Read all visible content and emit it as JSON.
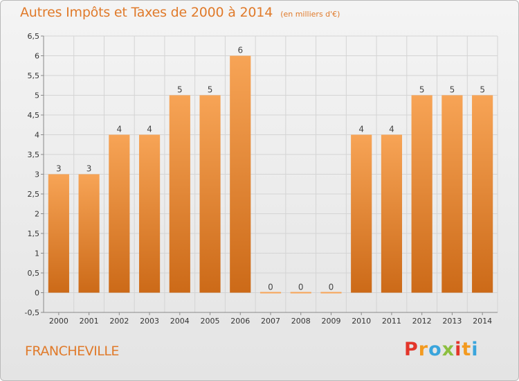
{
  "title": "Autres Impôts et Taxes de 2000 à 2014",
  "unit_label": "(en milliers d'€)",
  "city": "FRANCHEVILLE",
  "logo_text": "Proxiti",
  "logo_colors": [
    "#e3352a",
    "#f39a1f",
    "#3aa5dc",
    "#8cbf3f",
    "#e3352a",
    "#f39a1f",
    "#3aa5dc"
  ],
  "colors": {
    "accent": "#e07a2a",
    "bar_light": "#f7a456",
    "bar_dark": "#cc6a18",
    "grid": "#d4d4d4"
  },
  "chart_data": {
    "type": "bar",
    "title": "Autres Impôts et Taxes de 2000 à 2014",
    "subtitle": "(en milliers d'€)",
    "categories": [
      "2000",
      "2001",
      "2002",
      "2003",
      "2004",
      "2005",
      "2006",
      "2007",
      "2008",
      "2009",
      "2010",
      "2011",
      "2012",
      "2013",
      "2014"
    ],
    "values": [
      3,
      3,
      4,
      4,
      5,
      5,
      6,
      0,
      0,
      0,
      4,
      4,
      5,
      5,
      5
    ],
    "data_labels": [
      "3",
      "3",
      "4",
      "4",
      "5",
      "5",
      "6",
      "0",
      "0",
      "0",
      "4",
      "4",
      "5",
      "5",
      "5"
    ],
    "ylim": [
      -0.5,
      6.5
    ],
    "yticks": [
      -0.5,
      0,
      0.5,
      1,
      1.5,
      2,
      2.5,
      3,
      3.5,
      4,
      4.5,
      5,
      5.5,
      6,
      6.5
    ],
    "ytick_labels": [
      "-0,5",
      "0",
      "0,5",
      "1",
      "1,5",
      "2",
      "2,5",
      "3",
      "3,5",
      "4",
      "4,5",
      "5",
      "5,5",
      "6",
      "6,5"
    ],
    "grid": true,
    "legend": "none"
  }
}
